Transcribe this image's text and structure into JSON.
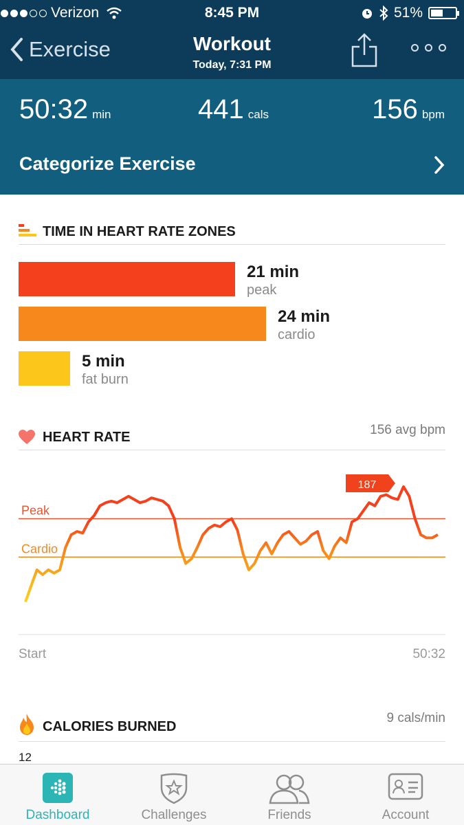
{
  "status_bar": {
    "carrier": "Verizon",
    "time": "8:45 PM",
    "battery": "51%",
    "battery_level": 0.51
  },
  "nav": {
    "back_label": "Exercise",
    "title": "Workout",
    "subtitle": "Today, 7:31 PM"
  },
  "stats": [
    {
      "value": "50:32",
      "unit": "min"
    },
    {
      "value": "441",
      "unit": "cals"
    },
    {
      "value": "156",
      "unit": "bpm"
    }
  ],
  "categorize": {
    "label": "Categorize Exercise"
  },
  "zones": {
    "title": "TIME IN HEART RATE ZONES",
    "items": [
      {
        "minutes": "21 min",
        "name": "peak",
        "color": "#f4401c",
        "value": 21
      },
      {
        "minutes": "24 min",
        "name": "cardio",
        "color": "#f7881c",
        "value": 24
      },
      {
        "minutes": "5 min",
        "name": "fat burn",
        "color": "#fcc71a",
        "value": 5
      }
    ]
  },
  "heart_rate": {
    "title": "HEART RATE",
    "avg": "156 avg bpm",
    "peak_label": "Peak",
    "cardio_label": "Cardio",
    "max_label": "187",
    "start_label": "Start",
    "end_label": "50:32"
  },
  "chart_data": {
    "type": "line",
    "title": "HEART RATE",
    "xlabel": "",
    "ylabel": "",
    "x_range_labels": [
      "Start",
      "50:32"
    ],
    "series": [
      {
        "values": [
          108,
          118,
          128,
          125,
          128,
          126,
          128,
          142,
          150,
          152,
          151,
          158,
          162,
          168,
          170,
          171,
          170,
          172,
          174,
          172,
          170,
          171,
          173,
          172,
          171,
          168,
          160,
          142,
          132,
          135,
          142,
          150,
          154,
          156,
          155,
          158,
          160,
          153,
          138,
          128,
          132,
          140,
          145,
          138,
          145,
          150,
          152,
          148,
          144,
          146,
          150,
          152,
          140,
          135,
          143,
          148,
          145,
          158,
          160,
          165,
          170,
          168,
          174,
          175,
          173,
          172,
          180,
          174,
          160,
          150,
          148,
          148,
          150
        ]
      }
    ],
    "reference_lines": [
      {
        "label": "Peak",
        "value": 160
      },
      {
        "label": "Cardio",
        "value": 136
      }
    ],
    "annotations": [
      {
        "label": "187"
      }
    ]
  },
  "calories": {
    "title": "CALORIES BURNED",
    "rate": "9 cals/min",
    "y_top": "12"
  },
  "tabs": [
    {
      "label": "Dashboard",
      "active": true
    },
    {
      "label": "Challenges",
      "active": false
    },
    {
      "label": "Friends",
      "active": false
    },
    {
      "label": "Account",
      "active": false
    }
  ],
  "colors": {
    "nav_bg": "#0d3b5a",
    "stats_bg": "#125e7f",
    "accent": "#2bb5b5"
  }
}
